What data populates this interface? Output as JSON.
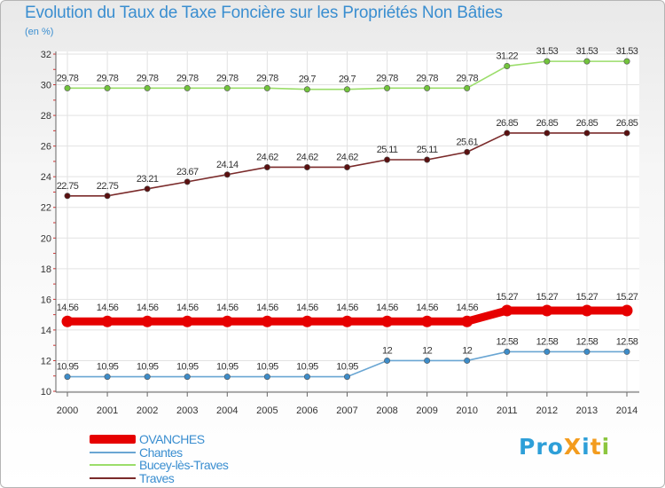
{
  "header": {
    "title": "Evolution du Taux de Taxe Foncière sur les Propriétés Non Bâties",
    "unit": "(en %)"
  },
  "logo": {
    "text": "ProXiti",
    "colors": [
      "#2e9fd8",
      "#f39c1e",
      "#8cc63f"
    ]
  },
  "chart_data": {
    "type": "line",
    "title": "Evolution du Taux de Taxe Foncière sur les Propriétés Non Bâties",
    "ylabel": "(en %)",
    "xlabel": "",
    "ylim": [
      10,
      32
    ],
    "yticks": [
      10,
      12,
      14,
      16,
      18,
      20,
      22,
      24,
      26,
      28,
      30,
      32
    ],
    "grid": true,
    "legend_position": "bottom-left",
    "categories": [
      "2000",
      "2001",
      "2002",
      "2003",
      "2004",
      "2005",
      "2006",
      "2007",
      "2008",
      "2009",
      "2010",
      "2011",
      "2012",
      "2013",
      "2014"
    ],
    "series": [
      {
        "name": "OVANCHES",
        "color": "#e60000",
        "marker": "#e60000",
        "highlight": true,
        "values": [
          14.56,
          14.56,
          14.56,
          14.56,
          14.56,
          14.56,
          14.56,
          14.56,
          14.56,
          14.56,
          14.56,
          15.27,
          15.27,
          15.27,
          15.27
        ],
        "labels": [
          "14.56",
          "14.56",
          "14.56",
          "14.56",
          "14.56",
          "14.56",
          "14.56",
          "14.56",
          "14.56",
          "14.56",
          "14.56",
          "15.27",
          "15.27",
          "15.27",
          "15.27"
        ]
      },
      {
        "name": "Chantes",
        "color": "#6aa6d3",
        "marker": "#3d8cc8",
        "values": [
          10.95,
          10.95,
          10.95,
          10.95,
          10.95,
          10.95,
          10.95,
          10.95,
          12,
          12,
          12,
          12.58,
          12.58,
          12.58,
          12.58
        ],
        "labels": [
          "10.95",
          "10.95",
          "10.95",
          "10.95",
          "10.95",
          "10.95",
          "10.95",
          "10.95",
          "12",
          "12",
          "12",
          "12.58",
          "12.58",
          "12.58",
          "12.58"
        ]
      },
      {
        "name": "Bucey-lès-Traves",
        "color": "#9bdd6a",
        "marker": "#72c43c",
        "values": [
          29.78,
          29.78,
          29.78,
          29.78,
          29.78,
          29.78,
          29.7,
          29.7,
          29.78,
          29.78,
          29.78,
          31.22,
          31.53,
          31.53,
          31.53
        ],
        "labels": [
          "29.78",
          "29.78",
          "29.78",
          "29.78",
          "29.78",
          "29.78",
          "29.7",
          "29.7",
          "29.78",
          "29.78",
          "29.78",
          "31.22",
          "31.53",
          "31.53",
          "31.53"
        ]
      },
      {
        "name": "Traves",
        "color": "#7a2a2a",
        "marker": "#5a1010",
        "values": [
          22.75,
          22.75,
          23.21,
          23.67,
          24.14,
          24.62,
          24.62,
          24.62,
          25.11,
          25.11,
          25.61,
          26.85,
          26.85,
          26.85,
          26.85
        ],
        "labels": [
          "22.75",
          "22.75",
          "23.21",
          "23.67",
          "24.14",
          "24.62",
          "24.62",
          "24.62",
          "25.11",
          "25.11",
          "25.61",
          "26.85",
          "26.85",
          "26.85",
          "26.85"
        ]
      }
    ]
  }
}
